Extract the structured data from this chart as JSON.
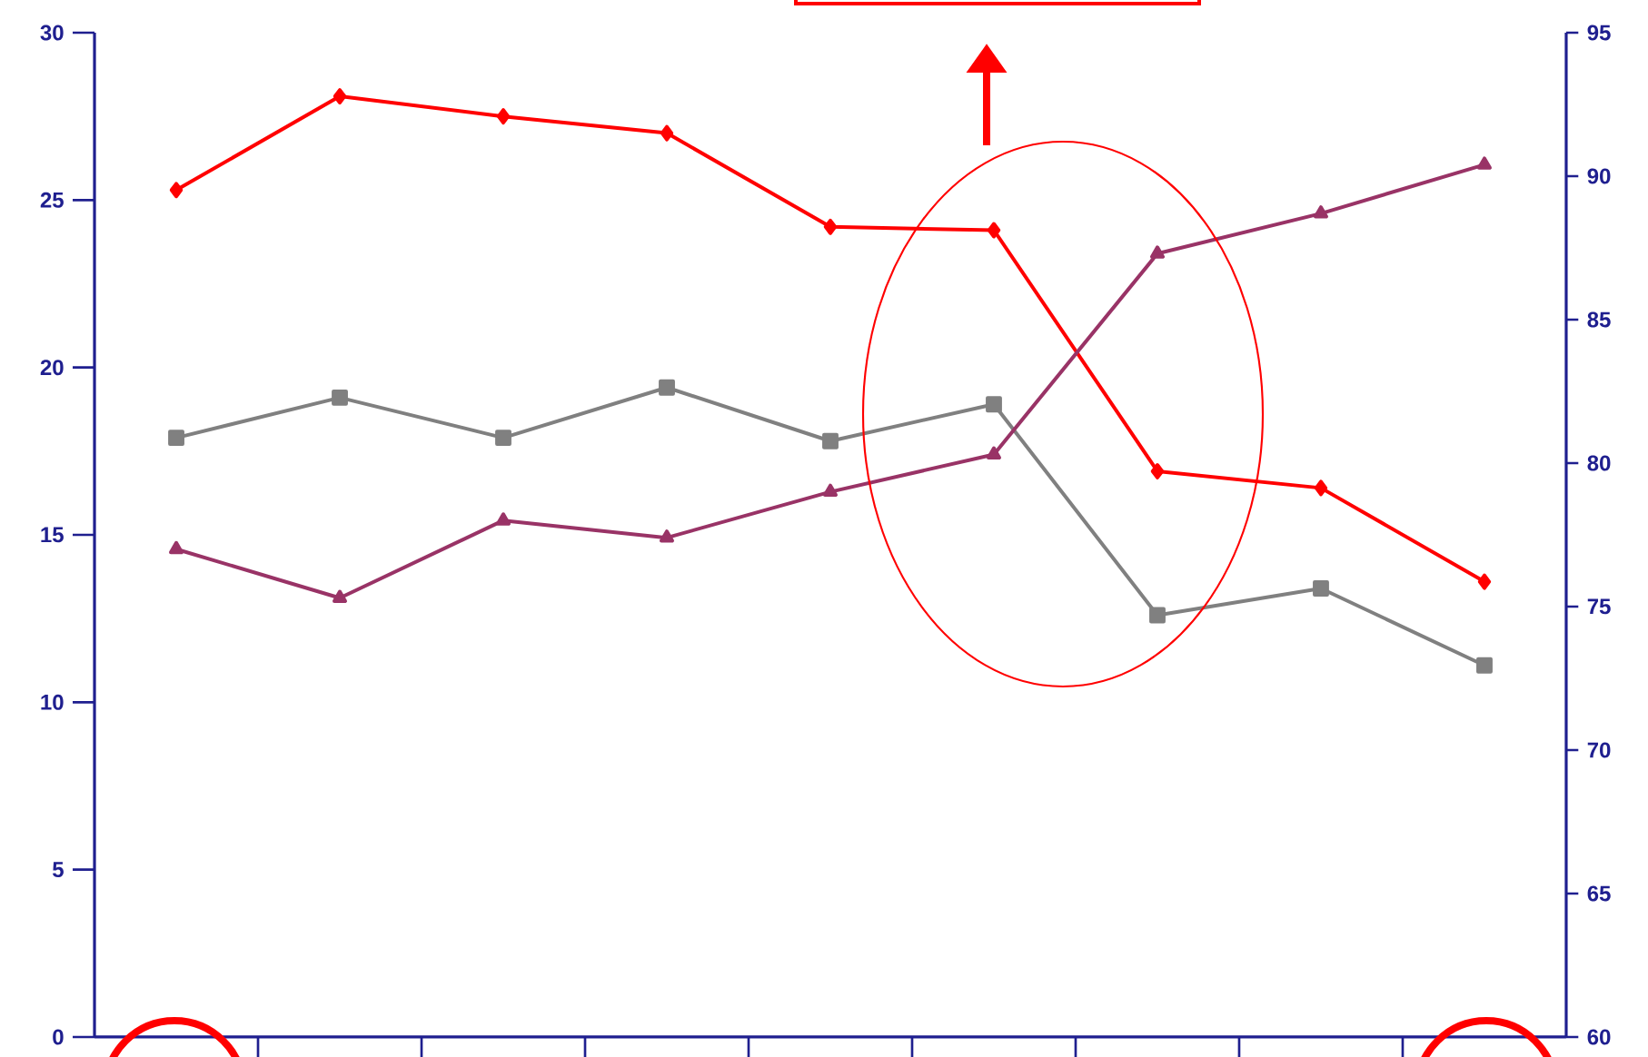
{
  "chart_data": {
    "type": "line",
    "categories": [
      null,
      null,
      null,
      null,
      null,
      null,
      null,
      null,
      null
    ],
    "ylim": [
      0,
      30
    ],
    "yticks": [
      0,
      5,
      10,
      15,
      20,
      25,
      30
    ],
    "y2lim": [
      60,
      95
    ],
    "y2ticks": [
      60,
      65,
      70,
      75,
      80,
      85,
      90,
      95
    ],
    "grid": false,
    "line_style": "solid",
    "series": [
      {
        "color": "#ff0000",
        "marker": "diamond",
        "values": [
          25.3,
          28.1,
          27.5,
          27.0,
          24.2,
          24.1,
          16.9,
          16.4,
          13.6
        ]
      },
      {
        "color": "#808080",
        "marker": "square",
        "values": [
          17.9,
          19.1,
          17.9,
          19.4,
          17.8,
          18.9,
          12.6,
          13.4,
          11.1
        ]
      },
      {
        "color": "#993366",
        "marker": "triangle",
        "axis": "y2",
        "values": [
          77.0,
          75.3,
          78.0,
          77.4,
          79.0,
          80.3,
          87.3,
          88.7,
          90.4
        ]
      }
    ]
  }
}
